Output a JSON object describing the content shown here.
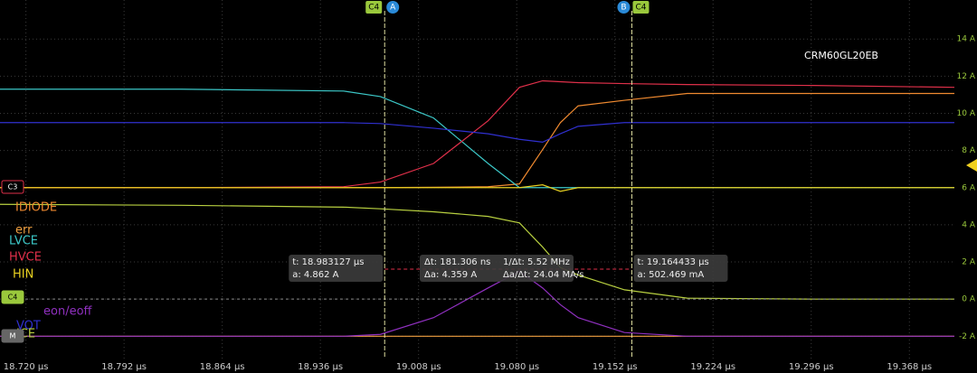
{
  "chart_data": {
    "type": "line",
    "title": "CRM60GL20EB",
    "x": [
      18.701,
      18.834,
      18.953,
      18.98,
      19.019,
      19.059,
      19.082,
      19.099,
      19.112,
      19.125,
      19.159,
      19.205,
      19.298,
      19.401
    ],
    "xlim": [
      18.701,
      19.401
    ],
    "xticks": [
      {
        "value": 18.72,
        "label": "18.720 µs"
      },
      {
        "value": 18.792,
        "label": "18.792 µs"
      },
      {
        "value": 18.864,
        "label": "18.864 µs"
      },
      {
        "value": 18.936,
        "label": "18.936 µs"
      },
      {
        "value": 19.008,
        "label": "19.008 µs"
      },
      {
        "value": 19.08,
        "label": "19.080 µs"
      },
      {
        "value": 19.152,
        "label": "19.152 µs"
      },
      {
        "value": 19.224,
        "label": "19.224 µs"
      },
      {
        "value": 19.296,
        "label": "19.296 µs"
      },
      {
        "value": 19.368,
        "label": "19.368 µs"
      }
    ],
    "ylim": [
      -3.2,
      16.1
    ],
    "yticks": [
      {
        "value": -2,
        "label": "-2 A"
      },
      {
        "value": 0,
        "label": "0 A"
      },
      {
        "value": 2,
        "label": "2 A"
      },
      {
        "value": 4,
        "label": "4 A"
      },
      {
        "value": 6,
        "label": "6 A"
      },
      {
        "value": 8,
        "label": "8 A"
      },
      {
        "value": 10,
        "label": "10 A"
      },
      {
        "value": 12,
        "label": "12 A"
      },
      {
        "value": 14,
        "label": "14 A"
      }
    ],
    "grid": true,
    "series": [
      {
        "name": "IDIODE",
        "color": "#f08a30",
        "values": [
          6,
          6,
          6,
          6,
          6.02,
          6.05,
          6.2,
          8.05,
          9.5,
          10.4,
          10.7,
          11.07,
          11.07,
          11.07
        ]
      },
      {
        "name": "err",
        "color": "#f0a040",
        "values": [
          -2,
          -2,
          -2,
          -2,
          -2,
          -2,
          -2,
          -2,
          -2,
          -2,
          -2,
          -2,
          -2,
          -2
        ]
      },
      {
        "name": "LVCE",
        "color": "#3cc8c8",
        "values": [
          11.3,
          11.3,
          11.2,
          10.9,
          9.75,
          7.3,
          6,
          6,
          6,
          6,
          6,
          6,
          6,
          6
        ]
      },
      {
        "name": "HVCE",
        "color": "#e0304a",
        "values": [
          6,
          6,
          6.05,
          6.3,
          7.3,
          9.6,
          11.4,
          11.75,
          11.7,
          11.65,
          11.6,
          11.55,
          11.5,
          11.4
        ]
      },
      {
        "name": "HIN",
        "color": "#e8d020",
        "values": [
          6,
          6,
          6,
          6,
          6,
          6,
          6,
          6.15,
          5.8,
          6,
          6,
          6,
          6,
          6
        ]
      },
      {
        "name": "eon/eoff",
        "color": "#9030c0",
        "values": [
          -2,
          -2,
          -2,
          -1.9,
          -1,
          0.6,
          1.5,
          0.6,
          -0.3,
          -1,
          -1.8,
          -2,
          -2,
          -2
        ]
      },
      {
        "name": "VOT",
        "color": "#3030d0",
        "values": [
          9.5,
          9.5,
          9.5,
          9.45,
          9.2,
          8.9,
          8.6,
          8.45,
          8.9,
          9.3,
          9.5,
          9.5,
          9.5,
          9.5
        ]
      },
      {
        "name": "ICE",
        "color": "#b8d040",
        "values": [
          5.1,
          5.05,
          4.95,
          4.86,
          4.7,
          4.45,
          4.1,
          2.8,
          1.7,
          1.3,
          0.5,
          0.05,
          0,
          0
        ]
      }
    ],
    "cursors": [
      {
        "label": "A",
        "channel": "C4",
        "x": 18.983127,
        "readout": [
          "t: 18.983127 µs",
          "a: 4.862 A"
        ]
      },
      {
        "label": "B",
        "channel": "C4",
        "x": 19.164433,
        "readout": [
          "t: 19.164433 µs",
          "a: 502.469 mA"
        ]
      }
    ],
    "delta_readout": [
      "Δt: 181.306 ns",
      "1/Δt: 5.52 MHz",
      "Δa: 4.359 A",
      "Δa/Δt: 24.04 MA/s"
    ],
    "channel_markers": [
      "C3",
      "C4",
      "M"
    ]
  }
}
